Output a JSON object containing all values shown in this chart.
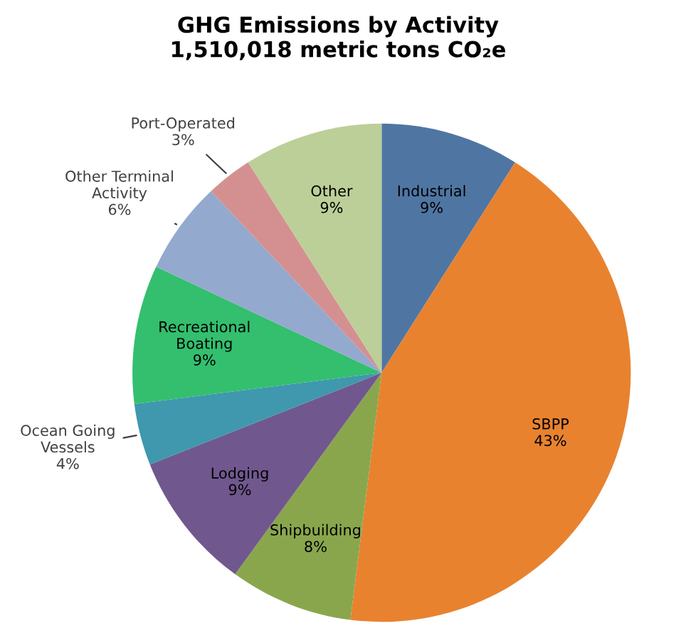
{
  "chart_data": {
    "type": "pie",
    "title": "GHG Emissions by Activity\n1,510,018 metric tons CO₂e",
    "categories": [
      "Industrial",
      "SBPP",
      "Shipbuilding",
      "Lodging",
      "Ocean Going\nVessels",
      "Recreational\nBoating",
      "Other Terminal\nActivity",
      "Port-Operated",
      "Other"
    ],
    "values": [
      9,
      43,
      8,
      9,
      4,
      9,
      6,
      3,
      9
    ],
    "colors": [
      "#4f76a3",
      "#e8822f",
      "#8aa64d",
      "#70588e",
      "#3f98ad",
      "#33bf6e",
      "#94a9ce",
      "#d49090",
      "#bccf98"
    ],
    "value_labels": [
      "9%",
      "43%",
      "8%",
      "9%",
      "4%",
      "9%",
      "6%",
      "3%",
      "9%"
    ]
  }
}
